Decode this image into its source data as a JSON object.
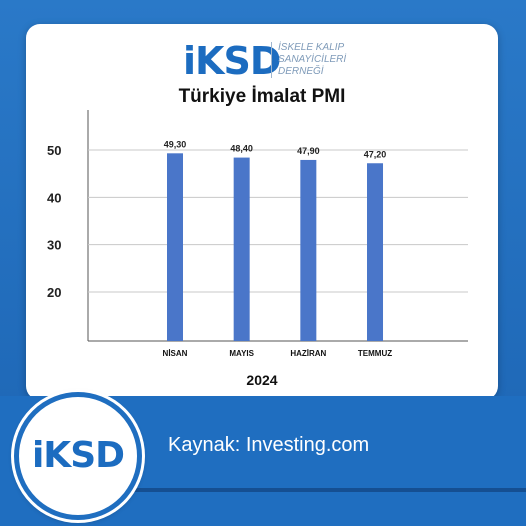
{
  "header": {
    "logo_text": "iKSD",
    "org_lines": [
      "İSKELE KALIP",
      "SANAYİCİLERİ",
      "DERNEĞİ"
    ]
  },
  "badge": {
    "logo_text": "iKSD"
  },
  "source_text": "Kaynak: Investing.com",
  "colors": {
    "bar": "#4a76c9",
    "frame": "#1f6ec0",
    "logo": "#1c6cc0"
  },
  "chart_data": {
    "type": "bar",
    "title": "Türkiye İmalat PMI",
    "xlabel": "2024",
    "ylabel": "",
    "categories": [
      "NİSAN",
      "MAYIS",
      "HAZİRAN",
      "TEMMUZ"
    ],
    "values": [
      49.3,
      48.4,
      47.9,
      47.2
    ],
    "data_labels": [
      "49,30",
      "48,40",
      "47,90",
      "47,20"
    ],
    "yticks": [
      20,
      30,
      40,
      50
    ],
    "grid": true,
    "legend": "none"
  }
}
